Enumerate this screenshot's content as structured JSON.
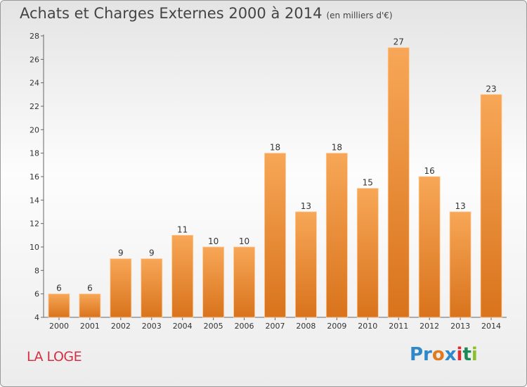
{
  "title": "Achats et Charges Externes 2000 à 2014",
  "unit": "(en milliers d'€)",
  "commune": "LA LOGE",
  "logo": {
    "p1": "Pr",
    "p2": "o",
    "p3": "x",
    "p4": "i",
    "p5": "t",
    "p6": "i"
  },
  "colors": {
    "bar_top": "#f7a757",
    "bar_bottom": "#d9731c",
    "bar_edge": "#ffc995",
    "commune": "#d32f45"
  },
  "chart_data": {
    "type": "bar",
    "title": "Achats et Charges Externes 2000 à 2014",
    "categories": [
      "2000",
      "2001",
      "2002",
      "2003",
      "2004",
      "2005",
      "2006",
      "2007",
      "2008",
      "2009",
      "2010",
      "2011",
      "2012",
      "2013",
      "2014"
    ],
    "values": [
      6,
      6,
      9,
      9,
      11,
      10,
      10,
      18,
      13,
      18,
      15,
      27,
      16,
      13,
      23
    ],
    "ylim": [
      4,
      28
    ],
    "yticks": [
      4,
      6,
      8,
      10,
      12,
      14,
      16,
      18,
      20,
      22,
      24,
      26,
      28
    ],
    "grid": false,
    "xlabel": "",
    "ylabel": ""
  }
}
